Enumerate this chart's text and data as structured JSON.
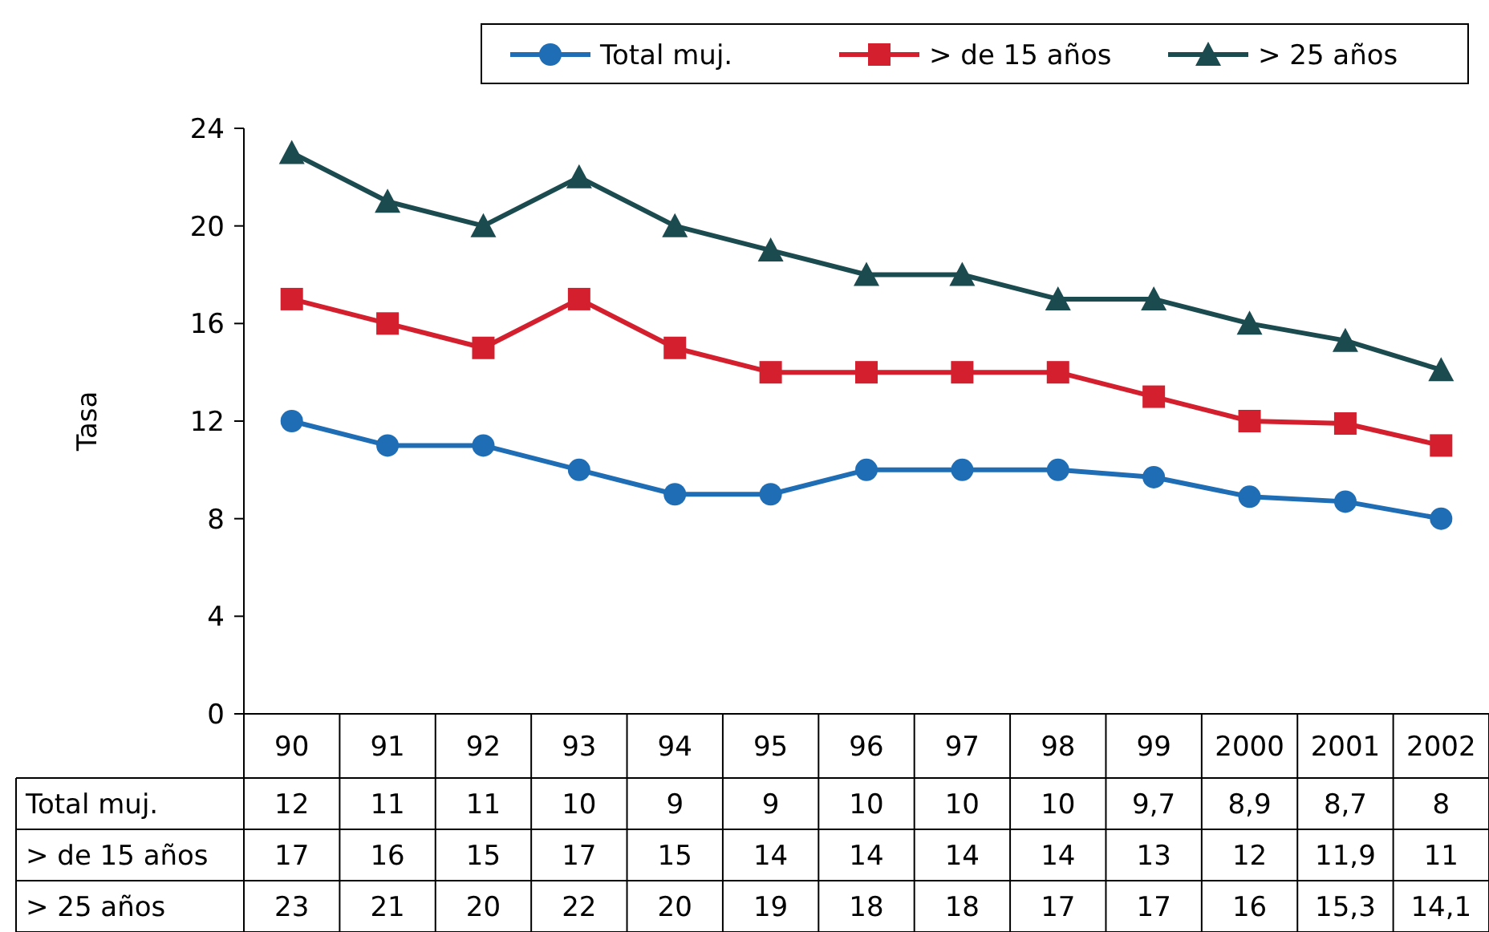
{
  "chart_data": {
    "type": "line",
    "ylabel": "Tasa",
    "categories": [
      "90",
      "91",
      "92",
      "93",
      "94",
      "95",
      "96",
      "97",
      "98",
      "99",
      "2000",
      "2001",
      "2002"
    ],
    "ylim": [
      0,
      24
    ],
    "yticks": [
      0,
      4,
      8,
      12,
      16,
      20,
      24
    ],
    "grid": false,
    "legend": "top right",
    "line_style": "solid",
    "series": [
      {
        "name": "Total muj.",
        "color": "#1f6db5",
        "marker": "circle",
        "values": [
          12,
          11,
          11,
          10,
          9,
          9,
          10,
          10,
          10,
          9.7,
          8.9,
          8.7,
          8
        ],
        "value_labels": [
          "12",
          "11",
          "11",
          "10",
          "9",
          "9",
          "10",
          "10",
          "10",
          "9,7",
          "8,9",
          "8,7",
          "8"
        ]
      },
      {
        "name": "> de 15 años",
        "color": "#d4202e",
        "marker": "square",
        "values": [
          17,
          16,
          15,
          17,
          15,
          14,
          14,
          14,
          14,
          13,
          12,
          11.9,
          11
        ],
        "value_labels": [
          "17",
          "16",
          "15",
          "17",
          "15",
          "14",
          "14",
          "14",
          "14",
          "13",
          "12",
          "11,9",
          "11"
        ]
      },
      {
        "name": "> 25 años",
        "color": "#1b4a4f",
        "marker": "triangle",
        "values": [
          23,
          21,
          20,
          22,
          20,
          19,
          18,
          18,
          17,
          17,
          16,
          15.3,
          14.1
        ],
        "value_labels": [
          "23",
          "21",
          "20",
          "22",
          "20",
          "19",
          "18",
          "18",
          "17",
          "17",
          "16",
          "15,3",
          "14,1"
        ]
      }
    ]
  }
}
